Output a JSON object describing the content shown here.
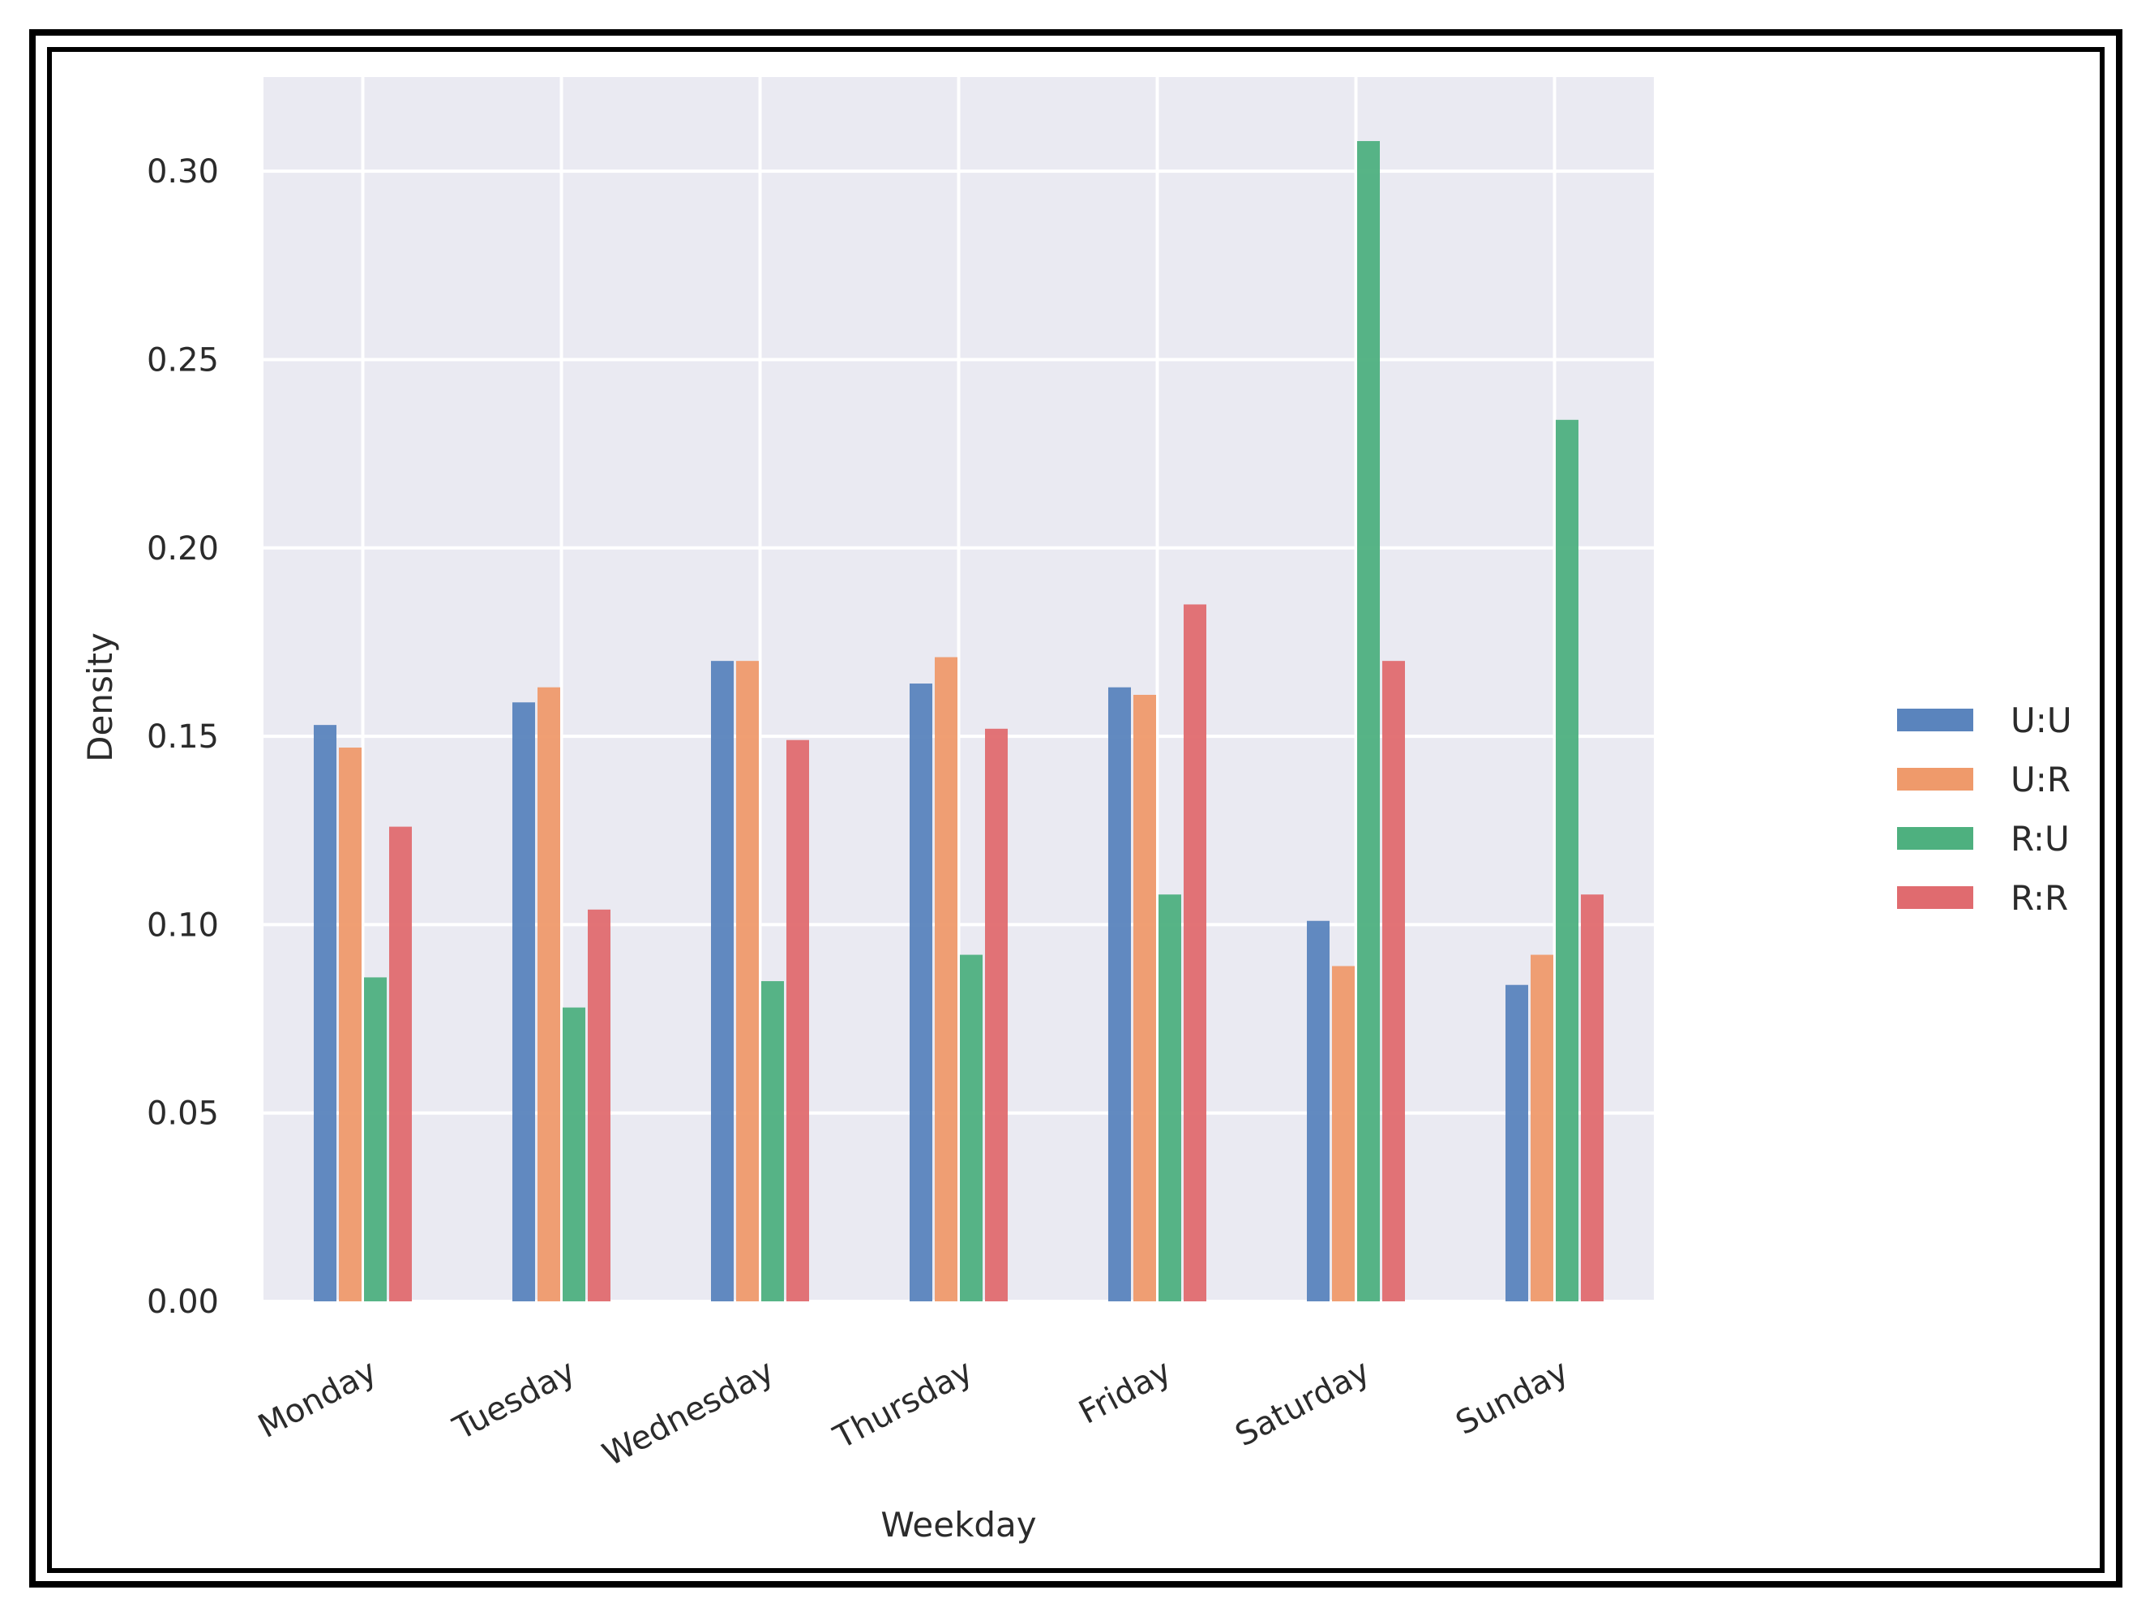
{
  "chart_data": {
    "type": "bar",
    "xlabel": "Weekday",
    "ylabel": "Density",
    "ylim": [
      0,
      0.325
    ],
    "yticks": [
      "0.00",
      "0.05",
      "0.10",
      "0.15",
      "0.20",
      "0.25",
      "0.30"
    ],
    "categories": [
      "Monday",
      "Tuesday",
      "Wednesday",
      "Thursday",
      "Friday",
      "Saturday",
      "Sunday"
    ],
    "series": [
      {
        "name": "U:U",
        "color": "#5a84bd",
        "values": [
          0.153,
          0.159,
          0.17,
          0.164,
          0.163,
          0.101,
          0.084
        ]
      },
      {
        "name": "U:R",
        "color": "#ef9a6b",
        "values": [
          0.147,
          0.163,
          0.17,
          0.171,
          0.161,
          0.089,
          0.092
        ]
      },
      {
        "name": "R:U",
        "color": "#4eb07f",
        "values": [
          0.086,
          0.078,
          0.085,
          0.092,
          0.108,
          0.308,
          0.234
        ]
      },
      {
        "name": "R:R",
        "color": "#e06b6f",
        "values": [
          0.126,
          0.104,
          0.149,
          0.152,
          0.185,
          0.17,
          0.108
        ]
      }
    ],
    "grid": true,
    "legend_position": "right",
    "plot_background": "#eaeaf2"
  }
}
